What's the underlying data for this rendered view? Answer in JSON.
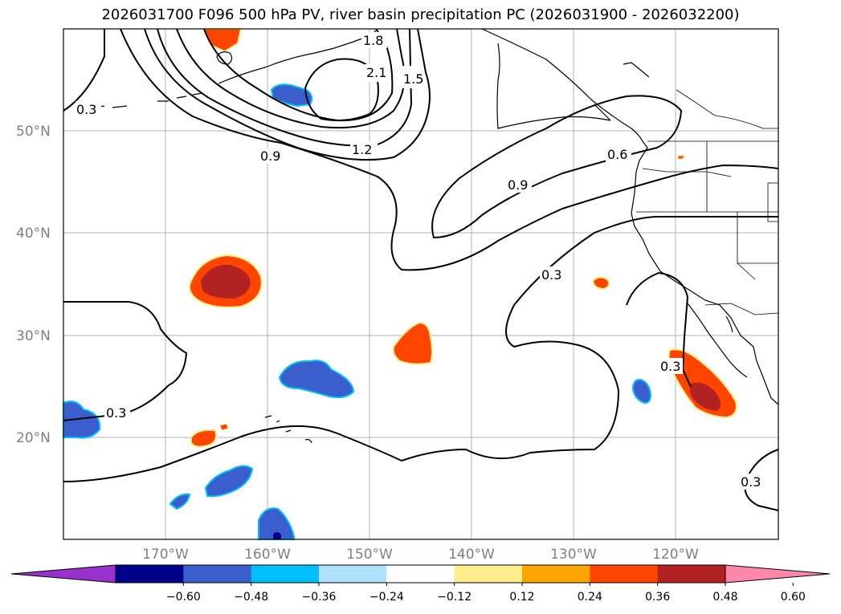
{
  "title": "2026031700 F096 500 hPa PV, river basin precipitation PC (2026031900 - 2026032200)",
  "lat_labels": [
    "50°N",
    "40°N",
    "30°N",
    "20°N"
  ],
  "lon_labels": [
    "170°W",
    "160°W",
    "150°W",
    "140°W",
    "130°W",
    "120°W"
  ],
  "contour_labels": [
    "0.3",
    "0.9",
    "1.2",
    "1.5",
    "1.8",
    "2.1",
    "0.6",
    "0.9",
    "0.3",
    "0.3",
    "0.3",
    "0.3"
  ],
  "colorbar": {
    "tick_labels": [
      "−0.60",
      "−0.48",
      "−0.36",
      "−0.24",
      "−0.12",
      "0.12",
      "0.24",
      "0.36",
      "0.48",
      "0.60"
    ],
    "colors": [
      "#9932cc",
      "#00008b",
      "#3a5fcd",
      "#00bfff",
      "#b0e2ff",
      "#ffffff",
      "#ffec8b",
      "#ffa500",
      "#ff4500",
      "#b22222",
      "#ff88aa"
    ]
  },
  "anomaly_colors": {
    "blue_strong": "#00008b",
    "blue": "#3a5fcd",
    "cyan": "#00bfff",
    "yellow": "#ffec8b",
    "orange": "#ffa500",
    "red": "#ff4500",
    "darkred": "#b22222"
  }
}
